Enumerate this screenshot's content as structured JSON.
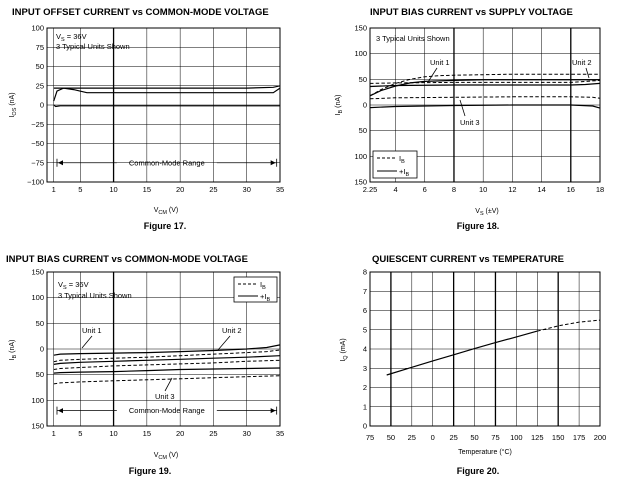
{
  "chart_data": [
    {
      "id": "fig17",
      "type": "line",
      "figure": "Figure 17.",
      "title": "INPUT OFFSET CURRENT vs COMMON-MODE VOLTAGE",
      "xlabel": "V",
      "xlabel_sub": "CM",
      "xlabel_tail": " (V)",
      "ylabel": "I",
      "ylabel_sub": "OS",
      "ylabel_tail": " (nA)",
      "xlim": [
        0,
        35
      ],
      "ylim": [
        -100,
        100
      ],
      "xticks": [
        "1",
        "5",
        "10",
        "15",
        "20",
        "25",
        "30",
        "35"
      ],
      "xtick_values": [
        1,
        5,
        10,
        15,
        20,
        25,
        30,
        35
      ],
      "yticks": [
        "100",
        "75",
        "50",
        "25",
        "0",
        "−25",
        "−50",
        "−75",
        "−100"
      ],
      "ytick_values": [
        100,
        75,
        50,
        25,
        0,
        -25,
        -50,
        -75,
        -100
      ],
      "annotation_vs": "V",
      "annotation_vs_sub": "S",
      "annotation_vs_tail": " = 36V",
      "annotation_units": "3 Typical Units Shown",
      "range_label": "Common-Mode Range",
      "range_start": 1.5,
      "range_end": 34.5,
      "range_value": -75,
      "series": [
        {
          "name": "unit-a",
          "style": "solid",
          "x": [
            1,
            1.5,
            2.5,
            4,
            6,
            10,
            20,
            30,
            34,
            35
          ],
          "y": [
            5,
            18,
            22,
            20,
            16,
            16,
            16,
            16,
            16,
            22
          ]
        },
        {
          "name": "unit-b",
          "style": "solid",
          "x": [
            1,
            2,
            4,
            10,
            20,
            30,
            34,
            35
          ],
          "y": [
            22,
            22,
            22,
            22,
            22,
            22,
            23,
            25
          ]
        },
        {
          "name": "unit-c",
          "style": "solid",
          "x": [
            1,
            1.3,
            2,
            10,
            20,
            30,
            35
          ],
          "y": [
            0,
            -2,
            -1,
            -1,
            -1,
            -1,
            -1
          ]
        }
      ]
    },
    {
      "id": "fig18",
      "type": "line",
      "figure": "Figure 18.",
      "title": "INPUT BIAS CURRENT vs SUPPLY VOLTAGE",
      "xlabel": "V",
      "xlabel_sub": "S",
      "xlabel_tail": " (±V)",
      "ylabel": "I",
      "ylabel_sub": "B",
      "ylabel_tail": " (nA)",
      "xlim": [
        2.25,
        18
      ],
      "ylim": [
        -150,
        150
      ],
      "xticks": [
        "2.25",
        "4",
        "6",
        "8",
        "10",
        "12",
        "14",
        "16",
        "18"
      ],
      "xtick_values": [
        2.25,
        4,
        6,
        8,
        10,
        12,
        14,
        16,
        18
      ],
      "yticks": [
        "150",
        "100",
        "50",
        "0",
        "50",
        "100",
        "150"
      ],
      "ytick_values": [
        150,
        100,
        50,
        0,
        -50,
        -100,
        -150
      ],
      "annotation_units": "3 Typical Units Shown",
      "unit_labels": [
        "Unit 1",
        "Unit 2",
        "Unit 3"
      ],
      "legend": [
        {
          "label": "I",
          "sub": "B",
          "style": "dashed"
        },
        {
          "label": "+I",
          "sub": "B",
          "style": "solid"
        }
      ],
      "series": [
        {
          "name": "Unit 1 -IB",
          "style": "dashed",
          "x": [
            2.25,
            3,
            4,
            5,
            6,
            7,
            8,
            10,
            12,
            14,
            16,
            18
          ],
          "y": [
            18,
            30,
            42,
            50,
            55,
            57,
            58,
            59,
            60,
            60,
            60,
            60
          ]
        },
        {
          "name": "Unit 1 +IB",
          "style": "solid",
          "x": [
            2.25,
            3,
            4,
            5,
            6,
            8,
            10,
            12,
            14,
            16,
            18
          ],
          "y": [
            18,
            28,
            37,
            43,
            46,
            48,
            49,
            49,
            49,
            49,
            49
          ]
        },
        {
          "name": "Unit 2 -IB",
          "style": "dashed",
          "x": [
            2.25,
            4,
            8,
            12,
            16,
            17,
            18
          ],
          "y": [
            42,
            43,
            44,
            44,
            44,
            46,
            48
          ]
        },
        {
          "name": "Unit 2 +IB",
          "style": "solid",
          "x": [
            2.25,
            4,
            8,
            12,
            16,
            17,
            18
          ],
          "y": [
            36,
            38,
            39,
            39,
            39,
            40,
            42
          ]
        },
        {
          "name": "Unit 3 -IB",
          "style": "dashed",
          "x": [
            2.25,
            4,
            8,
            12,
            16,
            17.5,
            18
          ],
          "y": [
            12,
            14,
            15,
            16,
            16,
            15,
            13
          ]
        },
        {
          "name": "Unit 3 +IB",
          "style": "solid",
          "x": [
            2.25,
            4,
            8,
            12,
            16,
            17.5,
            18
          ],
          "y": [
            -5,
            -3,
            -1,
            0,
            0,
            -2,
            -6
          ]
        }
      ]
    },
    {
      "id": "fig19",
      "type": "line",
      "figure": "Figure 19.",
      "title": "INPUT BIAS CURRENT vs COMMON-MODE VOLTAGE",
      "xlabel": "V",
      "xlabel_sub": "CM",
      "xlabel_tail": " (V)",
      "ylabel": "I",
      "ylabel_sub": "B",
      "ylabel_tail": " (nA)",
      "xlim": [
        0,
        35
      ],
      "ylim": [
        -150,
        150
      ],
      "xticks": [
        "1",
        "5",
        "10",
        "15",
        "20",
        "25",
        "30",
        "35"
      ],
      "xtick_values": [
        1,
        5,
        10,
        15,
        20,
        25,
        30,
        35
      ],
      "yticks": [
        "150",
        "100",
        "50",
        "0",
        "50",
        "100",
        "150"
      ],
      "ytick_values": [
        150,
        100,
        50,
        0,
        -50,
        -100,
        -150
      ],
      "annotation_vs": "V",
      "annotation_vs_sub": "S",
      "annotation_vs_tail": " = 36V",
      "annotation_units": "3 Typical Units Shown",
      "unit_labels": [
        "Unit 1",
        "Unit 2",
        "Unit 3"
      ],
      "legend": [
        {
          "label": "I",
          "sub": "B",
          "style": "dashed"
        },
        {
          "label": "+I",
          "sub": "B",
          "style": "solid"
        }
      ],
      "range_label": "Common-Mode Range",
      "range_start": 1.5,
      "range_end": 34.5,
      "range_value": -120,
      "series": [
        {
          "name": "Unit 1 +IB",
          "style": "solid",
          "x": [
            1,
            2,
            5,
            10,
            15,
            20,
            25,
            30,
            33,
            35
          ],
          "y": [
            -12,
            -10,
            -9,
            -8,
            -7,
            -5,
            -3,
            0,
            3,
            8
          ]
        },
        {
          "name": "Unit 1 -IB",
          "style": "dashed",
          "x": [
            1,
            2,
            5,
            10,
            15,
            20,
            25,
            30,
            33,
            35
          ],
          "y": [
            -25,
            -22,
            -20,
            -18,
            -16,
            -13,
            -10,
            -7,
            -5,
            -2
          ]
        },
        {
          "name": "Unit 2 +IB",
          "style": "solid",
          "x": [
            1,
            2,
            5,
            10,
            15,
            20,
            25,
            30,
            35
          ],
          "y": [
            -30,
            -28,
            -26,
            -24,
            -22,
            -20,
            -18,
            -16,
            -13
          ]
        },
        {
          "name": "Unit 2 -IB",
          "style": "dashed",
          "x": [
            1,
            2,
            5,
            10,
            15,
            20,
            25,
            30,
            35
          ],
          "y": [
            -40,
            -38,
            -36,
            -33,
            -31,
            -29,
            -27,
            -24,
            -22
          ]
        },
        {
          "name": "Unit 3 +IB",
          "style": "solid",
          "x": [
            1,
            2,
            5,
            10,
            15,
            20,
            25,
            30,
            35
          ],
          "y": [
            -47,
            -46,
            -45,
            -44,
            -42,
            -40,
            -39,
            -38,
            -37
          ]
        },
        {
          "name": "Unit 3 -IB",
          "style": "dashed",
          "x": [
            1,
            2,
            5,
            10,
            15,
            20,
            25,
            30,
            35
          ],
          "y": [
            -68,
            -66,
            -64,
            -62,
            -60,
            -58,
            -56,
            -54,
            -52
          ]
        }
      ]
    },
    {
      "id": "fig20",
      "type": "line",
      "figure": "Figure 20.",
      "title": "QUIESCENT CURRENT vs TEMPERATURE",
      "xlabel": "Temperature (°C)",
      "ylabel": "I",
      "ylabel_sub": "Q",
      "ylabel_tail": " (mA)",
      "xlim": [
        -75,
        200
      ],
      "ylim": [
        0,
        8
      ],
      "xticks": [
        "75",
        "50",
        "25",
        "0",
        "25",
        "50",
        "75",
        "100",
        "125",
        "150",
        "175",
        "200"
      ],
      "xtick_values": [
        -75,
        -50,
        -25,
        0,
        25,
        50,
        75,
        100,
        125,
        150,
        175,
        200
      ],
      "yticks": [
        "8",
        "7",
        "6",
        "5",
        "4",
        "3",
        "2",
        "1",
        "0"
      ],
      "ytick_values": [
        8,
        7,
        6,
        5,
        4,
        3,
        2,
        1,
        0
      ],
      "series": [
        {
          "name": "IQ",
          "style": "solid",
          "x": [
            -55,
            -25,
            0,
            25,
            50,
            75,
            100,
            125
          ],
          "y": [
            2.65,
            3.05,
            3.38,
            3.7,
            4.02,
            4.33,
            4.63,
            4.93
          ]
        },
        {
          "name": "IQ extended",
          "style": "dashed",
          "x": [
            125,
            150,
            175,
            200
          ],
          "y": [
            4.93,
            5.2,
            5.4,
            5.5
          ]
        }
      ]
    }
  ]
}
